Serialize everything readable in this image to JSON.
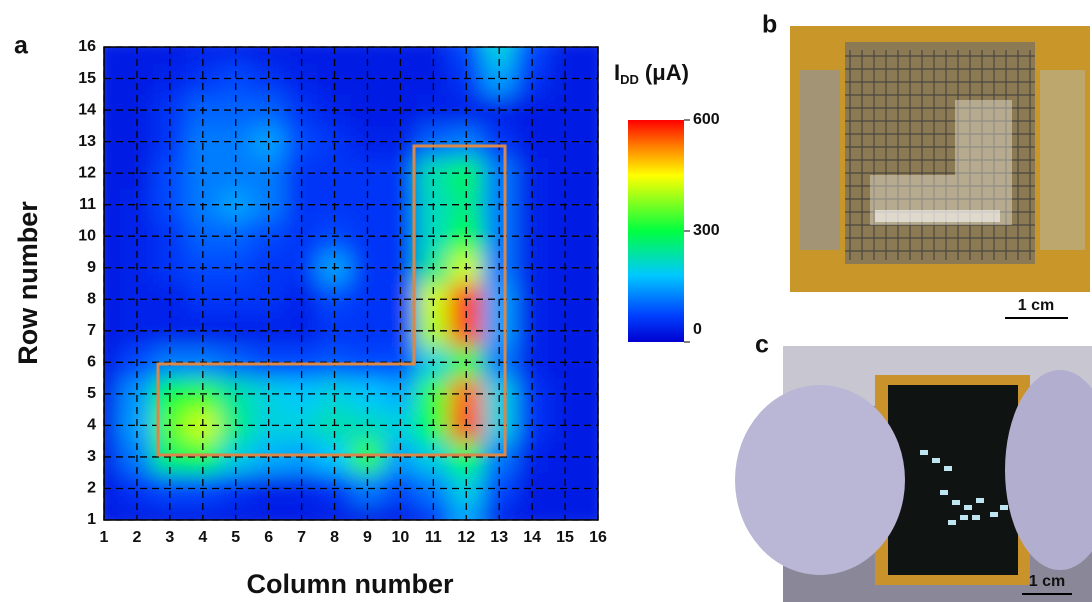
{
  "panel_labels": [
    "a",
    "b",
    "c"
  ],
  "chart_data": {
    "type": "heatmap",
    "xlabel": "Column number",
    "ylabel": "Row number",
    "x": [
      1,
      2,
      3,
      4,
      5,
      6,
      7,
      8,
      9,
      10,
      11,
      12,
      13,
      14,
      15,
      16
    ],
    "y": [
      1,
      2,
      3,
      4,
      5,
      6,
      7,
      8,
      9,
      10,
      11,
      12,
      13,
      14,
      15,
      16
    ],
    "values": [
      [
        30,
        30,
        30,
        30,
        30,
        30,
        30,
        30,
        30,
        30,
        60,
        150,
        40,
        30,
        30,
        30
      ],
      [
        30,
        60,
        80,
        80,
        60,
        40,
        40,
        60,
        120,
        80,
        120,
        200,
        80,
        30,
        30,
        30
      ],
      [
        40,
        120,
        280,
        300,
        200,
        160,
        150,
        180,
        330,
        150,
        200,
        300,
        120,
        40,
        30,
        30
      ],
      [
        40,
        150,
        350,
        420,
        260,
        200,
        200,
        230,
        220,
        200,
        300,
        560,
        200,
        60,
        30,
        30
      ],
      [
        40,
        140,
        300,
        330,
        240,
        200,
        180,
        200,
        180,
        160,
        330,
        540,
        200,
        60,
        30,
        30
      ],
      [
        30,
        80,
        120,
        120,
        100,
        80,
        80,
        90,
        80,
        80,
        200,
        300,
        120,
        40,
        30,
        30
      ],
      [
        30,
        40,
        40,
        40,
        40,
        40,
        40,
        60,
        60,
        60,
        400,
        560,
        150,
        40,
        30,
        30
      ],
      [
        30,
        40,
        40,
        60,
        60,
        60,
        40,
        80,
        60,
        60,
        420,
        570,
        150,
        40,
        30,
        30
      ],
      [
        30,
        40,
        60,
        80,
        80,
        60,
        60,
        150,
        60,
        60,
        250,
        420,
        120,
        40,
        30,
        30
      ],
      [
        30,
        40,
        60,
        100,
        100,
        80,
        60,
        80,
        60,
        60,
        220,
        300,
        120,
        40,
        30,
        30
      ],
      [
        30,
        40,
        80,
        120,
        150,
        120,
        60,
        60,
        60,
        60,
        220,
        260,
        120,
        40,
        30,
        30
      ],
      [
        30,
        30,
        80,
        120,
        120,
        120,
        60,
        60,
        60,
        60,
        230,
        280,
        120,
        40,
        30,
        30
      ],
      [
        30,
        30,
        60,
        120,
        120,
        150,
        80,
        60,
        40,
        40,
        100,
        120,
        60,
        30,
        30,
        30
      ],
      [
        30,
        30,
        60,
        100,
        100,
        100,
        60,
        40,
        30,
        30,
        40,
        40,
        40,
        30,
        30,
        30
      ],
      [
        30,
        30,
        40,
        60,
        80,
        60,
        40,
        30,
        30,
        30,
        30,
        60,
        150,
        60,
        30,
        30
      ],
      [
        30,
        30,
        30,
        40,
        40,
        30,
        30,
        30,
        30,
        30,
        30,
        80,
        200,
        80,
        30,
        30
      ]
    ],
    "xlim": [
      1,
      16
    ],
    "ylim": [
      1,
      16
    ],
    "xticks": [
      1,
      2,
      3,
      4,
      5,
      6,
      7,
      8,
      9,
      10,
      11,
      12,
      13,
      14,
      15,
      16
    ],
    "yticks": [
      1,
      2,
      3,
      4,
      5,
      6,
      7,
      8,
      9,
      10,
      11,
      12,
      13,
      14,
      15,
      16
    ],
    "grid": true,
    "colorbar": {
      "label": "I",
      "label_sub": "DD",
      "label_unit": "(μA)",
      "zlim": [
        0,
        600
      ],
      "zticks": [
        0,
        300,
        600
      ]
    }
  },
  "scale_bars": [
    "1 cm",
    "1 cm"
  ]
}
